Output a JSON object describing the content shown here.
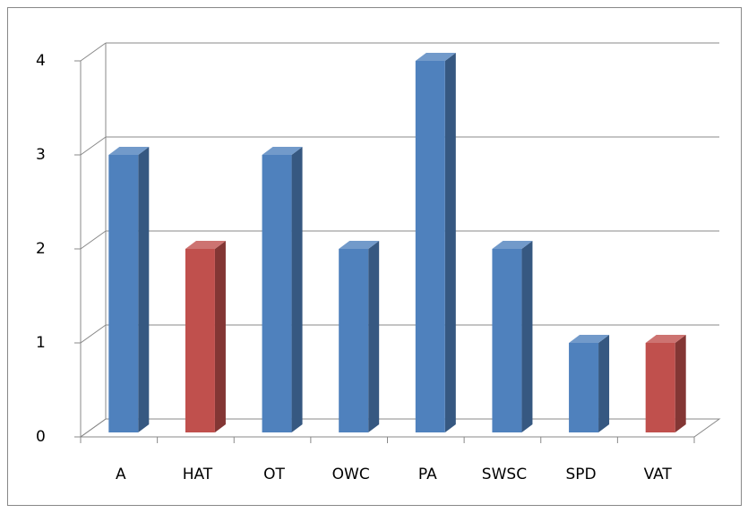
{
  "chart_data": {
    "type": "bar3d",
    "categories": [
      "A",
      "HAT",
      "OT",
      "OWC",
      "PA",
      "SWSC",
      "SPD",
      "VAT"
    ],
    "values": [
      3,
      2,
      3,
      2,
      4,
      2,
      1,
      1
    ],
    "colors": [
      "#4f81bd",
      "#c0504d",
      "#4f81bd",
      "#4f81bd",
      "#4f81bd",
      "#4f81bd",
      "#4f81bd",
      "#c0504d"
    ],
    "ylim": [
      0,
      4
    ],
    "yticks": [
      0,
      1,
      2,
      3,
      4
    ],
    "grid": true
  }
}
